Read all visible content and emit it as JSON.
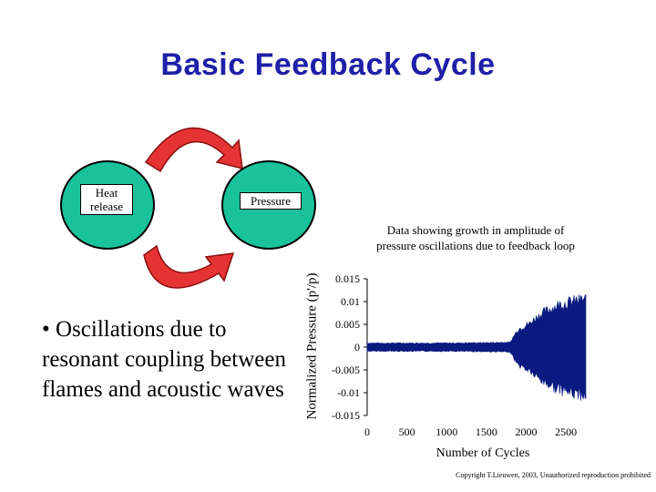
{
  "title": "Basic Feedback Cycle",
  "cycle": {
    "heat_label": "Heat release",
    "pressure_label": "Pressure",
    "node_color": "#19c29a",
    "arrow_color": "#e53333"
  },
  "bullet": "• Oscillations due to resonant coupling between flames and acoustic waves",
  "caption": "Data showing growth in amplitude of pressure oscillations due to feedback loop",
  "copyright": "Copyright T.Lieuwen, 2003, Unauthorized reproduction prohibited",
  "chart_data": {
    "type": "area",
    "xlabel": "Number of Cycles",
    "ylabel": "Normalized Pressure (p'/p)",
    "xlim": [
      0,
      2750
    ],
    "ylim": [
      -0.015,
      0.015
    ],
    "xticks": [
      "0",
      "500",
      "1000",
      "1500",
      "2000",
      "2500"
    ],
    "xtick_values": [
      0,
      500,
      1000,
      1500,
      2000,
      2500
    ],
    "yticks": [
      "0.015",
      "0.01",
      "0.005",
      "0",
      "-0.005",
      "-0.01",
      "-0.015"
    ],
    "ytick_values": [
      0.015,
      0.01,
      0.005,
      0,
      -0.005,
      -0.01,
      -0.015
    ],
    "series_color": "#0a1a80",
    "envelope": {
      "x": [
        0,
        500,
        1000,
        1500,
        1800,
        1850,
        1900,
        1950,
        2000,
        2050,
        2100,
        2200,
        2300,
        2400,
        2500,
        2600,
        2750
      ],
      "upper": [
        0.001,
        0.001,
        0.001,
        0.0011,
        0.0012,
        0.003,
        0.0045,
        0.005,
        0.0055,
        0.006,
        0.007,
        0.0085,
        0.0095,
        0.0105,
        0.011,
        0.0115,
        0.012
      ],
      "lower": [
        -0.001,
        -0.001,
        -0.001,
        -0.0011,
        -0.0012,
        -0.003,
        -0.0045,
        -0.005,
        -0.0055,
        -0.006,
        -0.007,
        -0.0085,
        -0.0095,
        -0.0105,
        -0.011,
        -0.0115,
        -0.012
      ]
    }
  }
}
